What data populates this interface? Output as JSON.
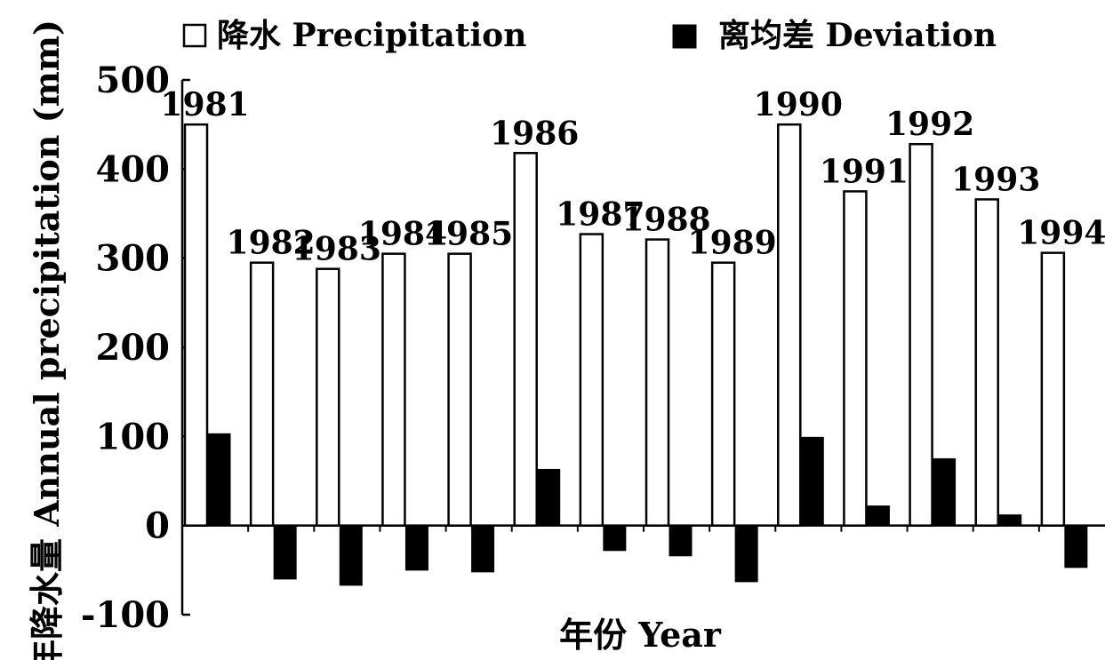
{
  "chart_data": {
    "type": "bar",
    "categories": [
      "1981",
      "1982",
      "1983",
      "1984",
      "1985",
      "1986",
      "1987",
      "1988",
      "1989",
      "1990",
      "1991",
      "1992",
      "1993",
      "1994"
    ],
    "series": [
      {
        "name": "降水 Precipitation",
        "values": [
          450,
          295,
          288,
          305,
          305,
          418,
          327,
          321,
          295,
          450,
          375,
          428,
          366,
          306
        ],
        "style": "open"
      },
      {
        "name": "离均差 Deviation",
        "values": [
          103,
          -60,
          -67,
          -50,
          -52,
          63,
          -28,
          -34,
          -63,
          99,
          22,
          75,
          12,
          -47
        ],
        "style": "filled"
      }
    ],
    "title": "",
    "xlabel": "年份 Year",
    "ylabel": "年降水量 Annual precipitation (mm)",
    "ylim": [
      -100,
      500
    ],
    "yticks": [
      "500",
      "400",
      "300",
      "200",
      "100",
      "0",
      "-100"
    ],
    "legend_position": "top",
    "grid": false,
    "colors": {
      "open_fill": "#ffffff",
      "filled": "#000000",
      "stroke": "#000000"
    }
  }
}
